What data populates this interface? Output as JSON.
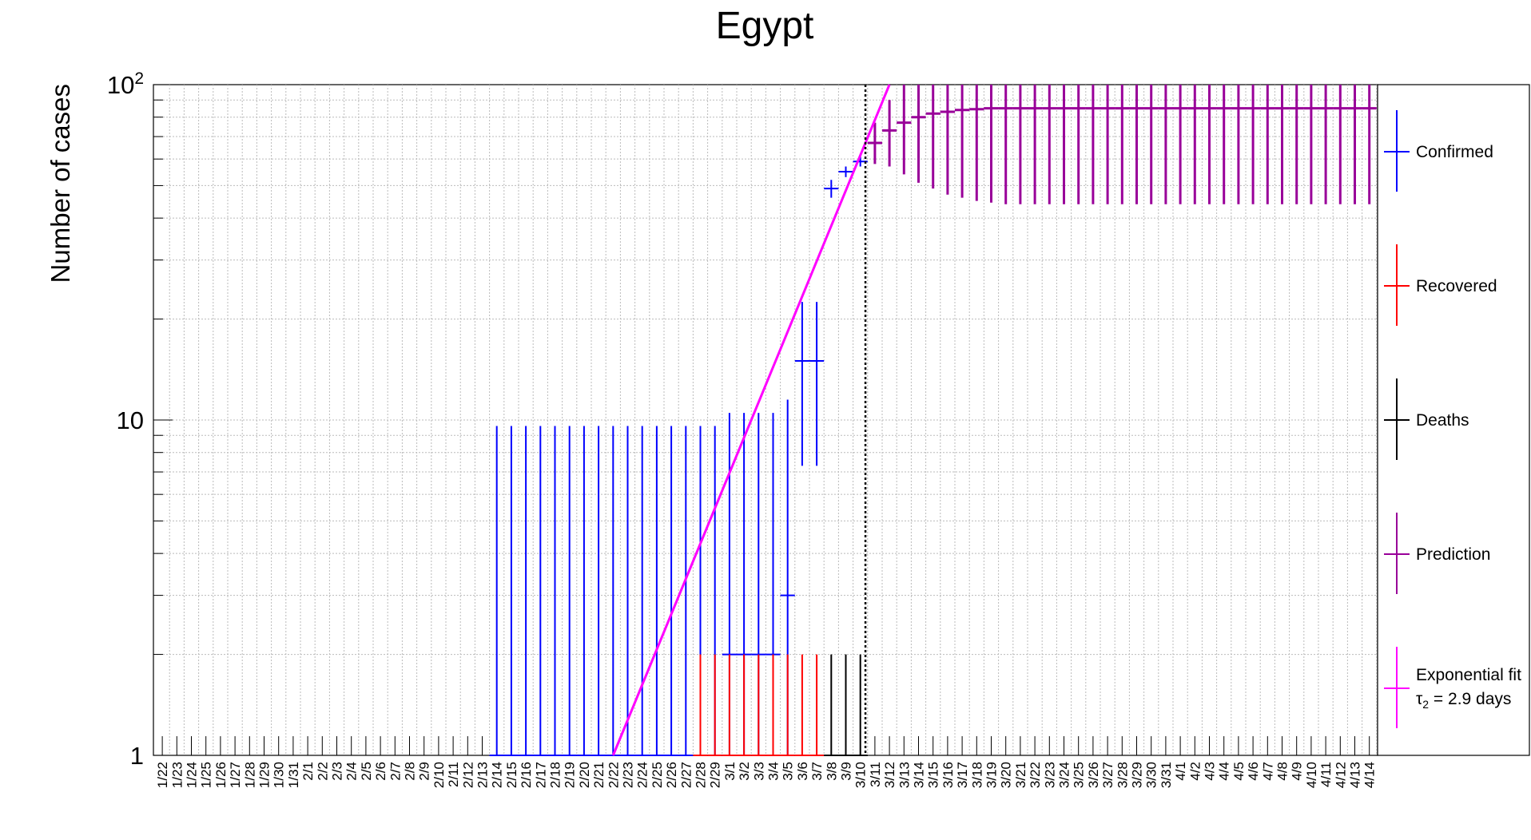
{
  "chart_data": {
    "type": "scatter",
    "title": "Egypt",
    "ylabel": "Number of cases",
    "xlabel": "",
    "y_scale": "log",
    "ylim": [
      1,
      100
    ],
    "y_ticks": [
      {
        "value": 1,
        "base": "1",
        "exp": ""
      },
      {
        "value": 10,
        "base": "10",
        "exp": ""
      },
      {
        "value": 100,
        "base": "10",
        "exp": "2"
      }
    ],
    "grid": true,
    "legend_position": "right",
    "categories": [
      "1/22",
      "1/23",
      "1/24",
      "1/25",
      "1/26",
      "1/27",
      "1/28",
      "1/29",
      "1/30",
      "1/31",
      "2/1",
      "2/2",
      "2/3",
      "2/4",
      "2/5",
      "2/6",
      "2/7",
      "2/8",
      "2/9",
      "2/10",
      "2/11",
      "2/12",
      "2/13",
      "2/14",
      "2/15",
      "2/16",
      "2/17",
      "2/18",
      "2/19",
      "2/20",
      "2/21",
      "2/22",
      "2/23",
      "2/24",
      "2/25",
      "2/26",
      "2/27",
      "2/28",
      "2/29",
      "3/1",
      "3/2",
      "3/3",
      "3/4",
      "3/5",
      "3/6",
      "3/7",
      "3/8",
      "3/9",
      "3/10",
      "3/11",
      "3/12",
      "3/13",
      "3/14",
      "3/15",
      "3/16",
      "3/17",
      "3/18",
      "3/19",
      "3/20",
      "3/21",
      "3/22",
      "3/23",
      "3/24",
      "3/25",
      "3/26",
      "3/27",
      "3/28",
      "3/29",
      "3/30",
      "3/31",
      "4/1",
      "4/2",
      "4/3",
      "4/4",
      "4/5",
      "4/6",
      "4/7",
      "4/8",
      "4/9",
      "4/10",
      "4/11",
      "4/12",
      "4/13",
      "4/14"
    ],
    "current_date": "3/10",
    "series": [
      {
        "name": "Confirmed",
        "color": "#0000ff",
        "points": [
          {
            "x": "2/14",
            "y": 1,
            "lo": 1,
            "hi": 9.6
          },
          {
            "x": "2/15",
            "y": 1,
            "lo": 1,
            "hi": 9.6
          },
          {
            "x": "2/16",
            "y": 1,
            "lo": 1,
            "hi": 9.6
          },
          {
            "x": "2/17",
            "y": 1,
            "lo": 1,
            "hi": 9.6
          },
          {
            "x": "2/18",
            "y": 1,
            "lo": 1,
            "hi": 9.6
          },
          {
            "x": "2/19",
            "y": 1,
            "lo": 1,
            "hi": 9.6
          },
          {
            "x": "2/20",
            "y": 1,
            "lo": 1,
            "hi": 9.6
          },
          {
            "x": "2/21",
            "y": 1,
            "lo": 1,
            "hi": 9.6
          },
          {
            "x": "2/22",
            "y": 1,
            "lo": 1,
            "hi": 9.6
          },
          {
            "x": "2/23",
            "y": 1,
            "lo": 1,
            "hi": 9.6
          },
          {
            "x": "2/24",
            "y": 1,
            "lo": 1,
            "hi": 9.6
          },
          {
            "x": "2/25",
            "y": 1,
            "lo": 1,
            "hi": 9.6
          },
          {
            "x": "2/26",
            "y": 1,
            "lo": 1,
            "hi": 9.6
          },
          {
            "x": "2/27",
            "y": 1,
            "lo": 1,
            "hi": 9.6
          },
          {
            "x": "2/28",
            "y": 1,
            "lo": 1,
            "hi": 9.6
          },
          {
            "x": "2/29",
            "y": 1,
            "lo": 1,
            "hi": 9.6
          },
          {
            "x": "3/1",
            "y": 2,
            "lo": 1,
            "hi": 10.5
          },
          {
            "x": "3/2",
            "y": 2,
            "lo": 1,
            "hi": 10.5
          },
          {
            "x": "3/3",
            "y": 2,
            "lo": 1,
            "hi": 10.5
          },
          {
            "x": "3/4",
            "y": 2,
            "lo": 1,
            "hi": 10.5
          },
          {
            "x": "3/5",
            "y": 3,
            "lo": 1,
            "hi": 11.5
          },
          {
            "x": "3/6",
            "y": 15,
            "lo": 7.3,
            "hi": 22.5
          },
          {
            "x": "3/7",
            "y": 15,
            "lo": 7.3,
            "hi": 22.5
          },
          {
            "x": "3/8",
            "y": 49,
            "lo": 46,
            "hi": 52
          },
          {
            "x": "3/9",
            "y": 55,
            "lo": 53,
            "hi": 57
          },
          {
            "x": "3/10",
            "y": 59,
            "lo": 57,
            "hi": 61
          }
        ]
      },
      {
        "name": "Recovered",
        "color": "#ff0000",
        "points": [
          {
            "x": "2/28",
            "y": 1,
            "lo": 1,
            "hi": 2
          },
          {
            "x": "2/29",
            "y": 1,
            "lo": 1,
            "hi": 2
          },
          {
            "x": "3/1",
            "y": 1,
            "lo": 1,
            "hi": 2
          },
          {
            "x": "3/2",
            "y": 1,
            "lo": 1,
            "hi": 2
          },
          {
            "x": "3/3",
            "y": 1,
            "lo": 1,
            "hi": 2
          },
          {
            "x": "3/4",
            "y": 1,
            "lo": 1,
            "hi": 2
          },
          {
            "x": "3/5",
            "y": 1,
            "lo": 1,
            "hi": 2
          },
          {
            "x": "3/6",
            "y": 1,
            "lo": 1,
            "hi": 2
          },
          {
            "x": "3/7",
            "y": 1,
            "lo": 1,
            "hi": 2
          }
        ]
      },
      {
        "name": "Deaths",
        "color": "#000000",
        "points": [
          {
            "x": "3/8",
            "y": 1,
            "lo": 1,
            "hi": 2
          },
          {
            "x": "3/9",
            "y": 1,
            "lo": 1,
            "hi": 2
          },
          {
            "x": "3/10",
            "y": 1,
            "lo": 1,
            "hi": 2
          }
        ]
      },
      {
        "name": "Prediction",
        "color": "#990099",
        "points": [
          {
            "x": "3/11",
            "y": 67,
            "lo": 58,
            "hi": 77
          },
          {
            "x": "3/12",
            "y": 73,
            "lo": 57,
            "hi": 90
          },
          {
            "x": "3/13",
            "y": 77,
            "lo": 54,
            "hi": 100
          },
          {
            "x": "3/14",
            "y": 80,
            "lo": 51,
            "hi": 100
          },
          {
            "x": "3/15",
            "y": 82,
            "lo": 49,
            "hi": 100
          },
          {
            "x": "3/16",
            "y": 83,
            "lo": 47,
            "hi": 100
          },
          {
            "x": "3/17",
            "y": 84,
            "lo": 46,
            "hi": 100
          },
          {
            "x": "3/18",
            "y": 84.5,
            "lo": 45,
            "hi": 100
          },
          {
            "x": "3/19",
            "y": 85,
            "lo": 44.5,
            "hi": 100
          },
          {
            "x": "3/20",
            "y": 85,
            "lo": 44,
            "hi": 100
          },
          {
            "x": "3/21",
            "y": 85,
            "lo": 44,
            "hi": 100
          },
          {
            "x": "3/22",
            "y": 85,
            "lo": 44,
            "hi": 100
          },
          {
            "x": "3/23",
            "y": 85,
            "lo": 44,
            "hi": 100
          },
          {
            "x": "3/24",
            "y": 85,
            "lo": 44,
            "hi": 100
          },
          {
            "x": "3/25",
            "y": 85,
            "lo": 44,
            "hi": 100
          },
          {
            "x": "3/26",
            "y": 85,
            "lo": 44,
            "hi": 100
          },
          {
            "x": "3/27",
            "y": 85,
            "lo": 44,
            "hi": 100
          },
          {
            "x": "3/28",
            "y": 85,
            "lo": 44,
            "hi": 100
          },
          {
            "x": "3/29",
            "y": 85,
            "lo": 44,
            "hi": 100
          },
          {
            "x": "3/30",
            "y": 85,
            "lo": 44,
            "hi": 100
          },
          {
            "x": "3/31",
            "y": 85,
            "lo": 44,
            "hi": 100
          },
          {
            "x": "4/1",
            "y": 85,
            "lo": 44,
            "hi": 100
          },
          {
            "x": "4/2",
            "y": 85,
            "lo": 44,
            "hi": 100
          },
          {
            "x": "4/3",
            "y": 85,
            "lo": 44,
            "hi": 100
          },
          {
            "x": "4/4",
            "y": 85,
            "lo": 44,
            "hi": 100
          },
          {
            "x": "4/5",
            "y": 85,
            "lo": 44,
            "hi": 100
          },
          {
            "x": "4/6",
            "y": 85,
            "lo": 44,
            "hi": 100
          },
          {
            "x": "4/7",
            "y": 85,
            "lo": 44,
            "hi": 100
          },
          {
            "x": "4/8",
            "y": 85,
            "lo": 44,
            "hi": 100
          },
          {
            "x": "4/9",
            "y": 85,
            "lo": 44,
            "hi": 100
          },
          {
            "x": "4/10",
            "y": 85,
            "lo": 44,
            "hi": 100
          },
          {
            "x": "4/11",
            "y": 85,
            "lo": 44,
            "hi": 100
          },
          {
            "x": "4/12",
            "y": 85,
            "lo": 44,
            "hi": 100
          },
          {
            "x": "4/13",
            "y": 85,
            "lo": 44,
            "hi": 100
          },
          {
            "x": "4/14",
            "y": 85,
            "lo": 44,
            "hi": 100
          }
        ]
      },
      {
        "name": "Exponential fit",
        "color": "#ff00ff",
        "fit_line": [
          {
            "x": "2/22",
            "y": 1
          },
          {
            "x": "3/12",
            "y": 100
          }
        ]
      }
    ],
    "legend": [
      {
        "label": "Confirmed",
        "color": "#0000ff"
      },
      {
        "label": "Recovered",
        "color": "#ff0000"
      },
      {
        "label": "Deaths",
        "color": "#000000"
      },
      {
        "label": "Prediction",
        "color": "#990099"
      },
      {
        "label": "Exponential fit",
        "color": "#ff00ff",
        "sub_prefix": "τ",
        "sub_index": "2",
        "sub_rest": " = 2.9 days"
      }
    ]
  }
}
